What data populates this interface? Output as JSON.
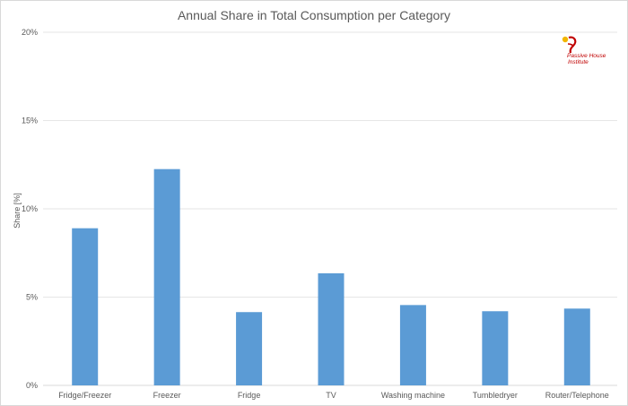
{
  "chart_data": {
    "type": "bar",
    "title": "Annual Share in Total Consumption per Category",
    "xlabel": "",
    "ylabel": "Share [%]",
    "categories": [
      "Fridge/Freezer",
      "Freezer",
      "Fridge",
      "TV",
      "Washing machine",
      "Tumbledryer",
      "Router/Telephone"
    ],
    "values": [
      8.9,
      12.25,
      4.15,
      6.35,
      4.55,
      4.2,
      4.35
    ],
    "ylim": [
      0,
      20
    ],
    "yticks": [
      "0%",
      "5%",
      "10%",
      "15%",
      "20%"
    ],
    "grid": true,
    "bar_color": "#5b9bd5"
  },
  "logo": {
    "line1": "Passive House",
    "line2": "Institute"
  }
}
